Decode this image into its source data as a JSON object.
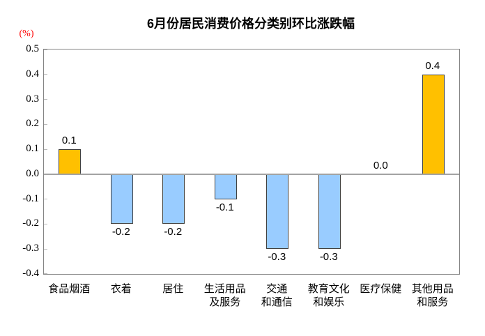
{
  "page": {
    "title": "6月份居民消费价格分类别环比涨跌幅",
    "y_axis_unit": "(%)"
  },
  "chart_data": {
    "type": "bar",
    "title": "6月份居民消费价格分类别环比涨跌幅",
    "ylabel": "(%)",
    "categories": [
      "食品烟酒",
      "衣着",
      "居住",
      "生活用品及服务",
      "交通和通信",
      "教育文化和娱乐",
      "医疗保健",
      "其他用品和服务"
    ],
    "category_lines": [
      [
        "食品烟酒"
      ],
      [
        "衣着"
      ],
      [
        "居住"
      ],
      [
        "生活用品",
        "及服务"
      ],
      [
        "交通",
        "和通信"
      ],
      [
        "教育文化",
        "和娱乐"
      ],
      [
        "医疗保健"
      ],
      [
        "其他用品",
        "和服务"
      ]
    ],
    "values": [
      0.1,
      -0.2,
      -0.2,
      -0.1,
      -0.3,
      -0.3,
      0.0,
      0.4
    ],
    "value_labels": [
      "0.1",
      "-0.2",
      "-0.2",
      "-0.1",
      "-0.3",
      "-0.3",
      "0.0",
      "0.4"
    ],
    "ylim": [
      -0.4,
      0.5
    ],
    "yticks": [
      0.5,
      0.4,
      0.3,
      0.2,
      0.1,
      0.0,
      -0.1,
      -0.2,
      -0.3,
      -0.4
    ],
    "ytick_labels": [
      "0.5",
      "0.4",
      "0.3",
      "0.2",
      "0.1",
      "0.0",
      "-0.1",
      "-0.2",
      "-0.3",
      "-0.4"
    ],
    "grid": false,
    "legend": "none",
    "colors": {
      "positive_bar": "#ffc000",
      "negative_bar": "#99ccff",
      "bar_border": "#404040",
      "zero_line": "#a3a3a3",
      "plot_border": "#848484",
      "tick_mark": "#b8b8b8",
      "unit_label": "#fe0000",
      "text": "#000000"
    }
  }
}
